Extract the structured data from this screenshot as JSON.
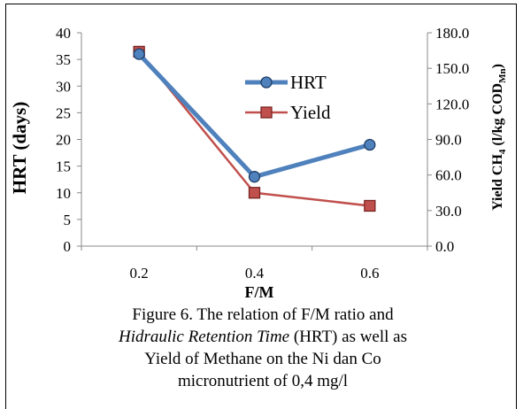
{
  "chart_data": {
    "type": "line",
    "categories": [
      "0.2",
      "0.4",
      "0.6"
    ],
    "xlabel": "F/M",
    "ylabel": "HRT (days)",
    "ylabel2_parts": {
      "main": "Yield CH",
      "sub1": "4",
      "mid": " (l/kg COD",
      "sub2": "Mn",
      "end": ")"
    },
    "ylim": [
      0,
      40
    ],
    "y2lim": [
      0,
      180
    ],
    "yticks": [
      "0",
      "5",
      "10",
      "15",
      "20",
      "25",
      "30",
      "35",
      "40"
    ],
    "y2ticks": [
      "0.0",
      "30.0",
      "60.0",
      "90.0",
      "120.0",
      "150.0",
      "180.0"
    ],
    "series": [
      {
        "name": "HRT",
        "axis": "left",
        "values": [
          36,
          13,
          19
        ],
        "color": "#4f81bd",
        "marker": "circle"
      },
      {
        "name": "Yield",
        "axis": "right",
        "values": [
          164,
          45,
          34
        ],
        "color": "#c0504d",
        "marker": "square"
      }
    ],
    "legend": "inside-top-right",
    "grid": false
  },
  "caption": {
    "line1": "Figure 6. The relation of F/M ratio and",
    "line2_italic": "Hidraulic Retention Time",
    "line2_rest": " (HRT) as well as",
    "line3": "Yield of Methane  on the Ni dan Co",
    "line4": "micronutrient of 0,4 mg/l"
  }
}
